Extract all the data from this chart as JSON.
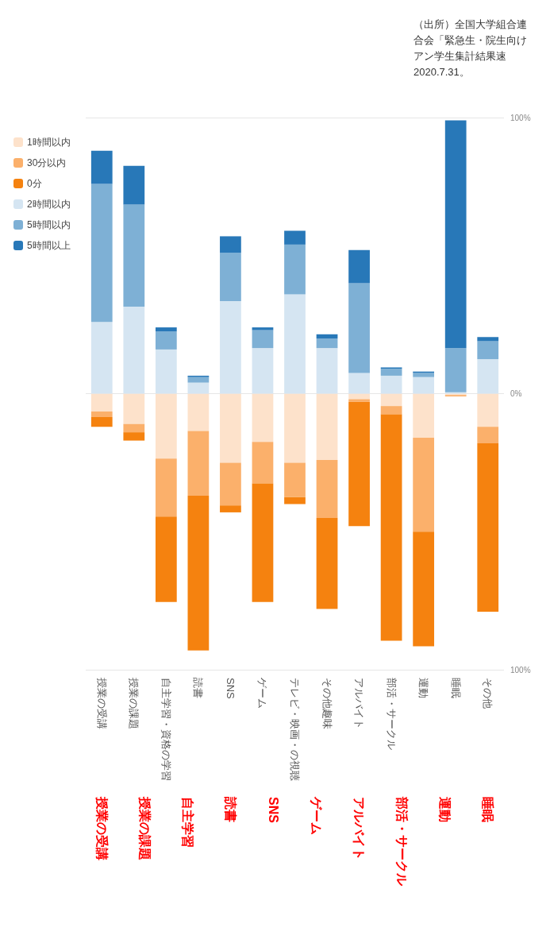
{
  "chart_data": {
    "type": "bar",
    "stacked": true,
    "categories": [
      "授業の受講",
      "授業の課題",
      "自主学習・資格の学習",
      "読書",
      "SNS",
      "ゲーム",
      "テレビ・映画・の視聴",
      "その他趣味",
      "アルバイト",
      "部活・サークル",
      "運動",
      "睡眠",
      "その他"
    ],
    "series": [
      {
        "name": "1時間以内",
        "color": "#fde2cb",
        "values": [
          -6.5,
          -11,
          -23.5,
          -13.5,
          -25,
          -17.5,
          -25,
          -24,
          -2,
          -4.5,
          -16,
          -0.5,
          -12
        ]
      },
      {
        "name": "30分以内",
        "color": "#fbb06b",
        "values": [
          -2,
          -3,
          -21,
          -23.5,
          -15.5,
          -15,
          -12.5,
          -21,
          -1,
          -3,
          -34,
          -0.5,
          -6
        ]
      },
      {
        "name": "0分",
        "color": "#f5820f",
        "values": [
          -3.5,
          -3,
          -31,
          -56,
          -2.5,
          -43,
          -2.5,
          -33,
          -45,
          -82,
          -41.5,
          0,
          -61
        ]
      },
      {
        "name": "2時間以内",
        "color": "#d5e5f2",
        "values": [
          26,
          31.5,
          16,
          4,
          33.5,
          16.5,
          36,
          16.5,
          7.5,
          6.5,
          6,
          0.5,
          12.5
        ]
      },
      {
        "name": "5時間以内",
        "color": "#7eb0d5",
        "values": [
          50,
          37,
          6.5,
          2,
          17.5,
          6.5,
          18,
          3.5,
          32.5,
          2.5,
          1.5,
          16,
          6.5
        ]
      },
      {
        "name": "5時間以上",
        "color": "#2878b8",
        "values": [
          12,
          14,
          1.5,
          0.5,
          6,
          1,
          5,
          1.5,
          12,
          0.5,
          0.5,
          82.5,
          1.5
        ]
      }
    ],
    "ylim": [
      -100,
      100
    ],
    "yticks": [
      {
        "value": -100,
        "label": "100%"
      },
      {
        "value": 0,
        "label": "0%"
      },
      {
        "value": 100,
        "label": "100%"
      }
    ],
    "grid": "y",
    "legend": "left",
    "annotations": [
      "（出所）全国大学組合連合会「緊急生・院生向けアン学生集計結果速2020.7.31。",
      "授業の受講",
      "授業の課題",
      "自主学習",
      "読書",
      "SNS",
      "ゲーム",
      "アルバイト",
      "部活・サークル",
      "運動",
      "睡眠"
    ]
  }
}
